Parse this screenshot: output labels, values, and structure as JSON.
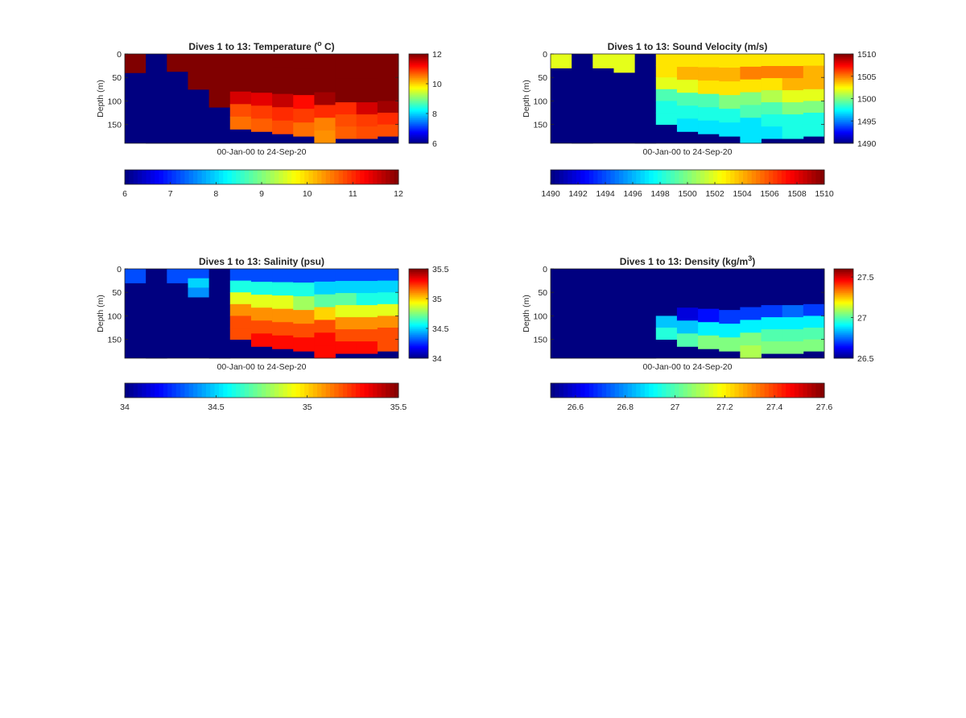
{
  "colormap": "jet",
  "chart_data": [
    {
      "type": "heatmap",
      "title": "Dives 1 to 13: Temperature (",
      "title_super": "o",
      "title_suffix": " C)",
      "xlabel": "00-Jan-00 to 24-Sep-20",
      "ylabel": "Depth (m)",
      "yticks": [
        0,
        50,
        100,
        150
      ],
      "ylim": [
        0,
        190
      ],
      "clim": [
        6,
        12
      ],
      "colorbar_vertical_ticks": [
        "6",
        "8",
        "10",
        "12"
      ],
      "colorbar_horizontal_ticks": [
        "6",
        "7",
        "8",
        "9",
        "10",
        "11",
        "12"
      ],
      "n_columns": 13,
      "fill": 6,
      "columns": [
        {
          "d": 40,
          "v": [
            12,
            12
          ]
        },
        {
          "d": 190,
          "v": [
            6
          ]
        },
        {
          "d": 190,
          "v": [
            12,
            6,
            6,
            6,
            6
          ]
        },
        {
          "d": 190,
          "v": [
            12,
            12,
            6,
            6,
            6
          ]
        },
        {
          "d": 190,
          "v": [
            12,
            12,
            12,
            6,
            6
          ]
        },
        {
          "d": 160,
          "v": [
            12,
            12,
            12,
            11.5,
            10.8,
            10.6
          ]
        },
        {
          "d": 165,
          "v": [
            12,
            12,
            12,
            11.4,
            10.9,
            10.7
          ]
        },
        {
          "d": 170,
          "v": [
            12,
            12,
            12,
            11.6,
            11.0,
            10.8
          ]
        },
        {
          "d": 175,
          "v": [
            12,
            12,
            12,
            11.2,
            10.9,
            10.6
          ]
        },
        {
          "d": 190,
          "v": [
            12,
            12,
            12,
            11.8,
            11.0,
            10.5,
            10.4
          ]
        },
        {
          "d": 180,
          "v": [
            12,
            12,
            12,
            12,
            11.0,
            10.8,
            10.7
          ]
        },
        {
          "d": 180,
          "v": [
            12,
            12,
            12,
            12,
            11.5,
            10.9,
            10.8
          ]
        },
        {
          "d": 175,
          "v": [
            12,
            12,
            12,
            12,
            11.8,
            11.0,
            10.8
          ]
        }
      ]
    },
    {
      "type": "heatmap",
      "title": "Dives 1 to 13: Sound Velocity (m/s)",
      "xlabel": "00-Jan-00 to 24-Sep-20",
      "ylabel": "Depth (m)",
      "yticks": [
        0,
        50,
        100,
        150
      ],
      "ylim": [
        0,
        190
      ],
      "clim": [
        1490,
        1510
      ],
      "colorbar_vertical_ticks": [
        "1490",
        "1495",
        "1500",
        "1505",
        "1510"
      ],
      "colorbar_horizontal_ticks": [
        "1490",
        "1492",
        "1494",
        "1496",
        "1498",
        "1500",
        "1502",
        "1504",
        "1506",
        "1508",
        "1510"
      ],
      "n_columns": 13,
      "fill": 1490,
      "columns": [
        {
          "d": 30,
          "v": [
            1502,
            1502
          ]
        },
        {
          "d": 190,
          "v": [
            1490
          ]
        },
        {
          "d": 30,
          "v": [
            1502,
            1502
          ]
        },
        {
          "d": 60,
          "v": [
            1502,
            1502,
            1490
          ]
        },
        {
          "d": 190,
          "v": [
            1490
          ]
        },
        {
          "d": 150,
          "v": [
            1503,
            1503,
            1502,
            1499,
            1498,
            1498
          ]
        },
        {
          "d": 165,
          "v": [
            1503,
            1504,
            1502,
            1499,
            1498,
            1497
          ]
        },
        {
          "d": 170,
          "v": [
            1503,
            1504,
            1503,
            1499,
            1498,
            1497
          ]
        },
        {
          "d": 175,
          "v": [
            1503,
            1504,
            1503,
            1500,
            1498,
            1497
          ]
        },
        {
          "d": 190,
          "v": [
            1503,
            1505,
            1503,
            1500,
            1499,
            1497,
            1497
          ]
        },
        {
          "d": 180,
          "v": [
            1503,
            1505,
            1503,
            1501,
            1499,
            1498,
            1497
          ]
        },
        {
          "d": 180,
          "v": [
            1503,
            1505,
            1504,
            1502,
            1500,
            1498,
            1498
          ]
        },
        {
          "d": 175,
          "v": [
            1503,
            1504,
            1504,
            1502,
            1500,
            1498,
            1498
          ]
        }
      ]
    },
    {
      "type": "heatmap",
      "title": "Dives 1 to 13: Salinity (psu)",
      "xlabel": "00-Jan-00 to 24-Sep-20",
      "ylabel": "Depth (m)",
      "yticks": [
        0,
        50,
        100,
        150
      ],
      "ylim": [
        0,
        190
      ],
      "clim": [
        34,
        35.5
      ],
      "colorbar_vertical_ticks": [
        "34",
        "34.5",
        "35",
        "35.5"
      ],
      "colorbar_horizontal_ticks": [
        "34",
        "34.5",
        "35",
        "35.5"
      ],
      "n_columns": 13,
      "fill": 34,
      "columns": [
        {
          "d": 30,
          "v": [
            34.3,
            34.3
          ]
        },
        {
          "d": 190,
          "v": [
            34
          ]
        },
        {
          "d": 30,
          "v": [
            34.3,
            34.3
          ]
        },
        {
          "d": 60,
          "v": [
            34.3,
            34.5,
            34.4
          ]
        },
        {
          "d": 190,
          "v": [
            34
          ]
        },
        {
          "d": 150,
          "v": [
            34.3,
            34.6,
            34.9,
            35.1,
            35.2,
            35.2
          ]
        },
        {
          "d": 165,
          "v": [
            34.3,
            34.6,
            34.9,
            35.1,
            35.2,
            35.3
          ]
        },
        {
          "d": 170,
          "v": [
            34.3,
            34.6,
            34.9,
            35.1,
            35.2,
            35.3
          ]
        },
        {
          "d": 175,
          "v": [
            34.3,
            34.6,
            34.8,
            35.1,
            35.2,
            35.3
          ]
        },
        {
          "d": 190,
          "v": [
            34.3,
            34.5,
            34.7,
            35.0,
            35.2,
            35.3,
            35.3
          ]
        },
        {
          "d": 180,
          "v": [
            34.3,
            34.5,
            34.7,
            34.9,
            35.1,
            35.2,
            35.3
          ]
        },
        {
          "d": 180,
          "v": [
            34.3,
            34.5,
            34.6,
            34.9,
            35.1,
            35.2,
            35.3
          ]
        },
        {
          "d": 175,
          "v": [
            34.3,
            34.5,
            34.6,
            34.9,
            35.1,
            35.2,
            35.2
          ]
        }
      ]
    },
    {
      "type": "heatmap",
      "title": "Dives 1 to 13: Density (kg/m",
      "title_super": "3",
      "title_suffix": ")",
      "xlabel": "00-Jan-00 to 24-Sep-20",
      "ylabel": "Depth (m)",
      "yticks": [
        0,
        50,
        100,
        150
      ],
      "ylim": [
        0,
        190
      ],
      "clim": [
        26.5,
        27.6
      ],
      "colorbar_vertical_ticks": [
        "26.5",
        "27",
        "27.5"
      ],
      "colorbar_horizontal_ticks": [
        "26.6",
        "26.8",
        "27",
        "27.2",
        "27.4",
        "27.6"
      ],
      "n_columns": 13,
      "fill": 26.5,
      "columns": [
        {
          "d": 190,
          "v": [
            26.5
          ]
        },
        {
          "d": 190,
          "v": [
            26.5
          ]
        },
        {
          "d": 190,
          "v": [
            26.5
          ]
        },
        {
          "d": 190,
          "v": [
            26.5
          ]
        },
        {
          "d": 190,
          "v": [
            26.5
          ]
        },
        {
          "d": 150,
          "v": [
            26.5,
            26.5,
            26.5,
            26.5,
            26.85,
            26.95
          ]
        },
        {
          "d": 165,
          "v": [
            26.5,
            26.5,
            26.5,
            26.6,
            26.85,
            27.0
          ]
        },
        {
          "d": 170,
          "v": [
            26.5,
            26.5,
            26.5,
            26.65,
            26.9,
            27.05
          ]
        },
        {
          "d": 175,
          "v": [
            26.5,
            26.5,
            26.5,
            26.7,
            26.9,
            27.05
          ]
        },
        {
          "d": 190,
          "v": [
            26.5,
            26.5,
            26.5,
            26.7,
            26.9,
            27.05,
            27.1
          ]
        },
        {
          "d": 180,
          "v": [
            26.5,
            26.5,
            26.5,
            26.7,
            26.9,
            27.0,
            27.05
          ]
        },
        {
          "d": 180,
          "v": [
            26.5,
            26.5,
            26.5,
            26.75,
            26.9,
            27.0,
            27.05
          ]
        },
        {
          "d": 175,
          "v": [
            26.5,
            26.5,
            26.5,
            26.7,
            26.9,
            27.0,
            27.05
          ]
        }
      ]
    }
  ]
}
